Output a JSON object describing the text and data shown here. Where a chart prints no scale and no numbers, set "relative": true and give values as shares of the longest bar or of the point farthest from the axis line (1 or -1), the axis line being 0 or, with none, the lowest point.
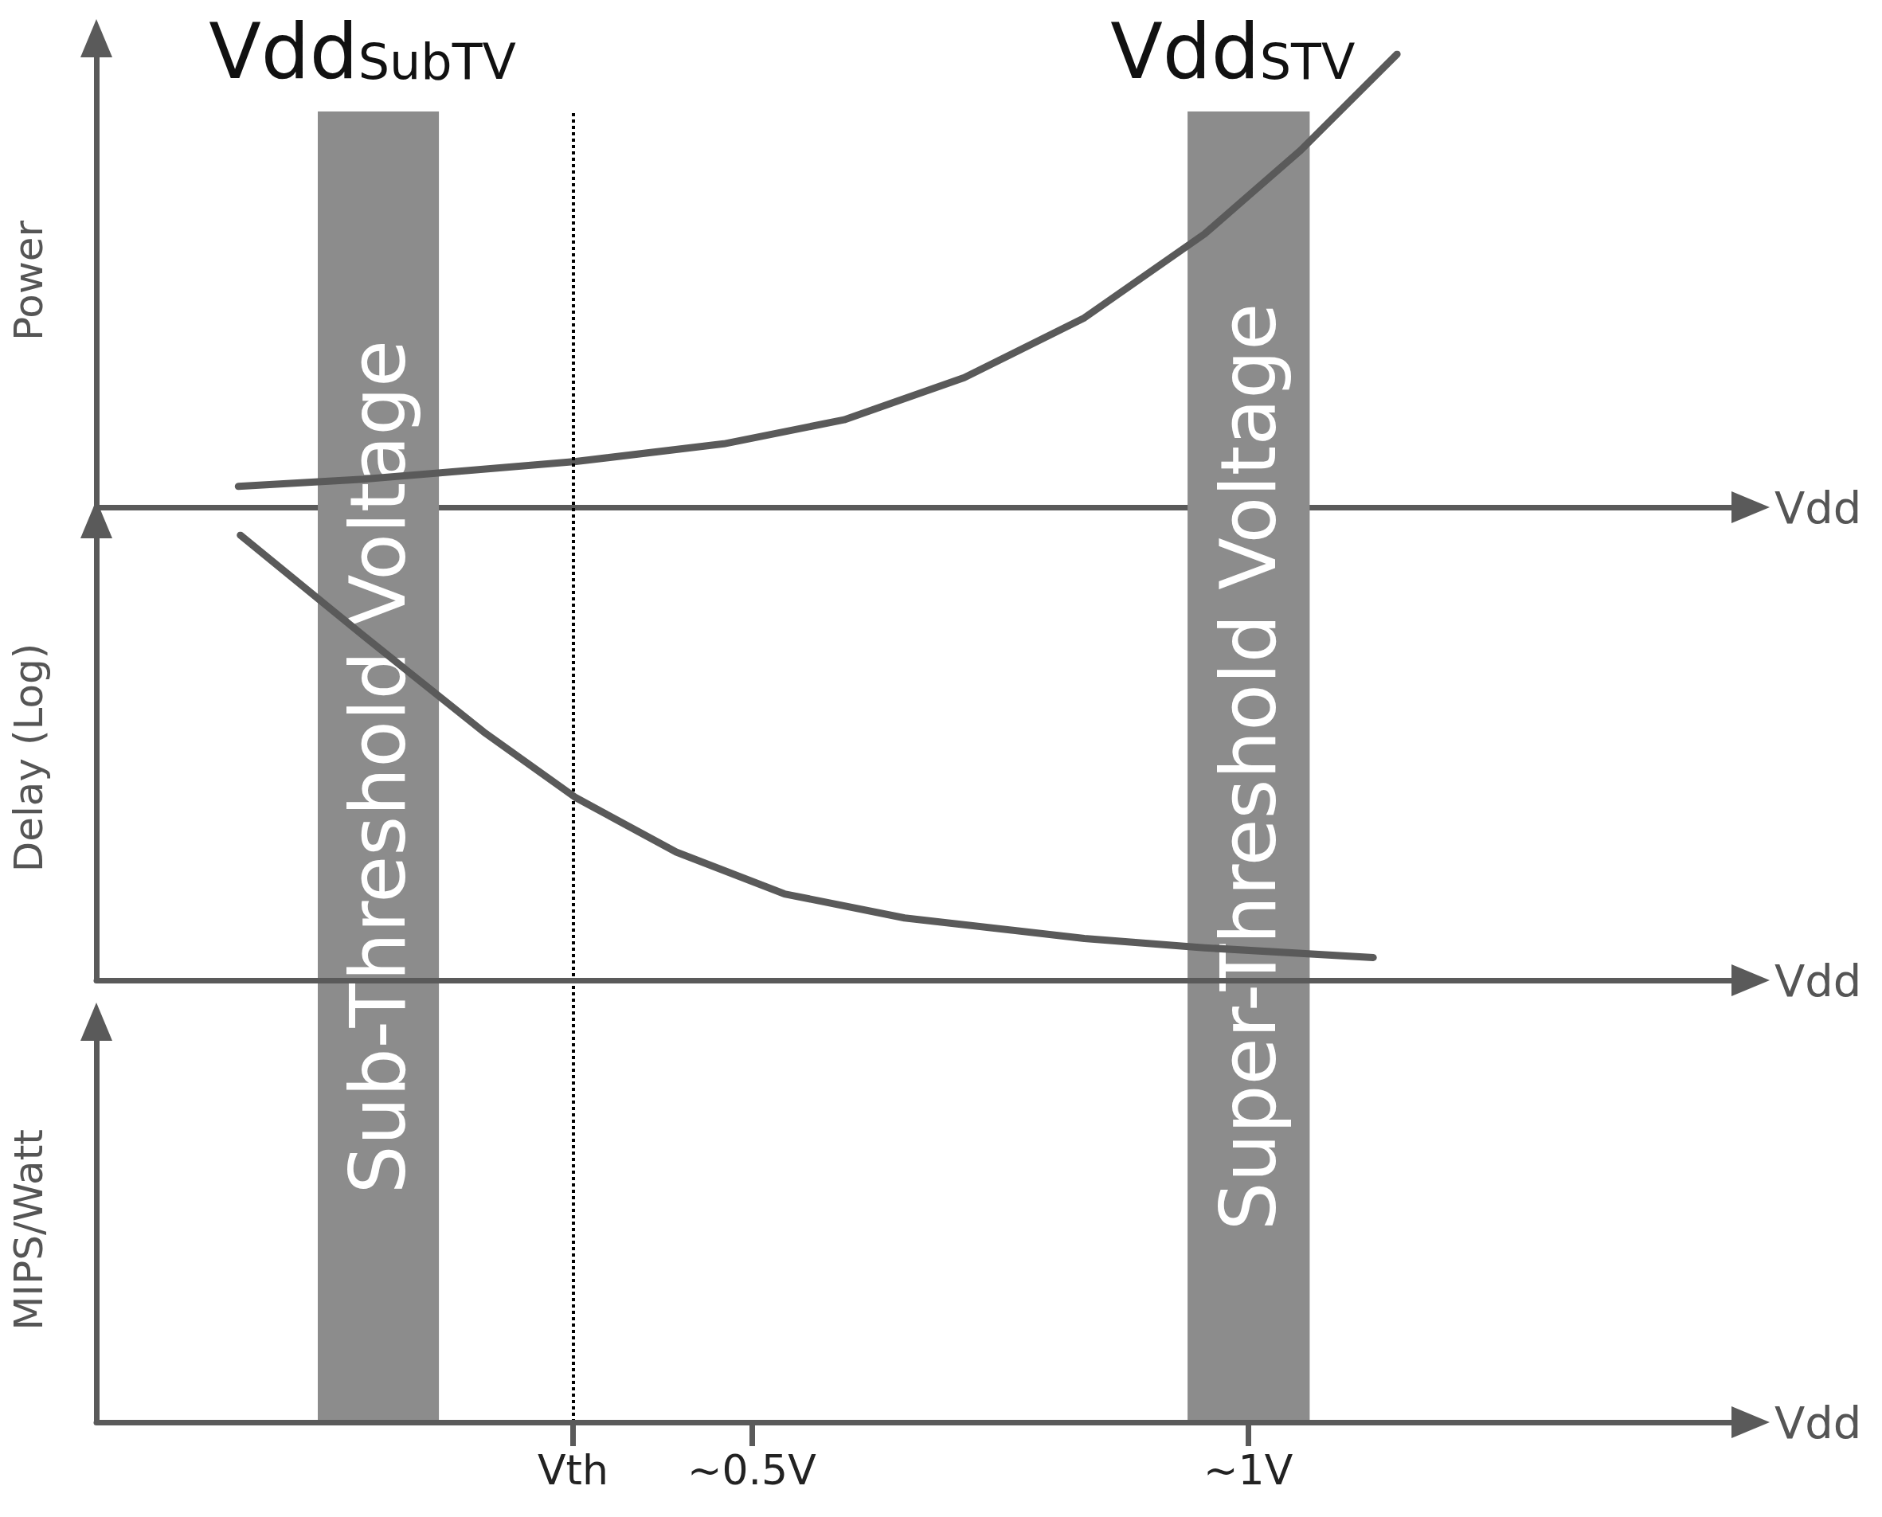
{
  "chart_data": [
    {
      "type": "line",
      "ylabel": "Power",
      "xlabel": "Vdd",
      "relative": true,
      "xlim": [
        -0.16,
        1.49
      ],
      "tick_labels": "x",
      "marker": "none",
      "line_style": "solid",
      "xticks": [
        {
          "value": 0.32,
          "label": "Vth"
        },
        {
          "value": 0.5,
          "label": "~0.5V"
        },
        {
          "value": 1,
          "label": "~1V"
        }
      ],
      "bands": [
        {
          "axis": "x",
          "from": 0.063,
          "to": 0.185,
          "label": "Sub-Threshold Voltage",
          "color": "#8c8c8c"
        },
        {
          "axis": "x",
          "from": 0.939,
          "to": 1.062,
          "label": "Super-Threshold Voltage",
          "color": "#8c8c8c"
        }
      ],
      "ref_lines": [
        {
          "axis": "x",
          "value": 0.32,
          "line_style": "dotted",
          "color": "#000000"
        }
      ],
      "annotations": [
        "Vdd$_{SubTV}$",
        "Vdd$_{STV}$"
      ],
      "series": [
        {
          "color": "#5a5a5a",
          "x": [
            -0.017,
            0.109,
            0.323,
            0.472,
            0.593,
            0.714,
            0.835,
            0.956,
            1.053,
            1.15
          ],
          "values": [
            0.046,
            0.062,
            0.101,
            0.14,
            0.193,
            0.286,
            0.418,
            0.603,
            0.788,
            1
          ]
        }
      ]
    },
    {
      "type": "line",
      "ylabel": "Delay (Log)",
      "xlabel": "Vdd",
      "relative": true,
      "xlim": [
        -0.16,
        1.49
      ],
      "tick_labels": false,
      "marker": "none",
      "line_style": "solid",
      "series": [
        {
          "color": "#5a5a5a",
          "x": [
            -0.015,
            0.109,
            0.23,
            0.323,
            0.424,
            0.533,
            0.654,
            0.835,
            0.956,
            1.126
          ],
          "values": [
            1,
            0.774,
            0.558,
            0.41,
            0.288,
            0.194,
            0.14,
            0.094,
            0.073,
            0.051
          ]
        }
      ]
    },
    {
      "type": "other",
      "ylabel": "MIPS/Watt",
      "xlabel": "Vdd"
    }
  ]
}
